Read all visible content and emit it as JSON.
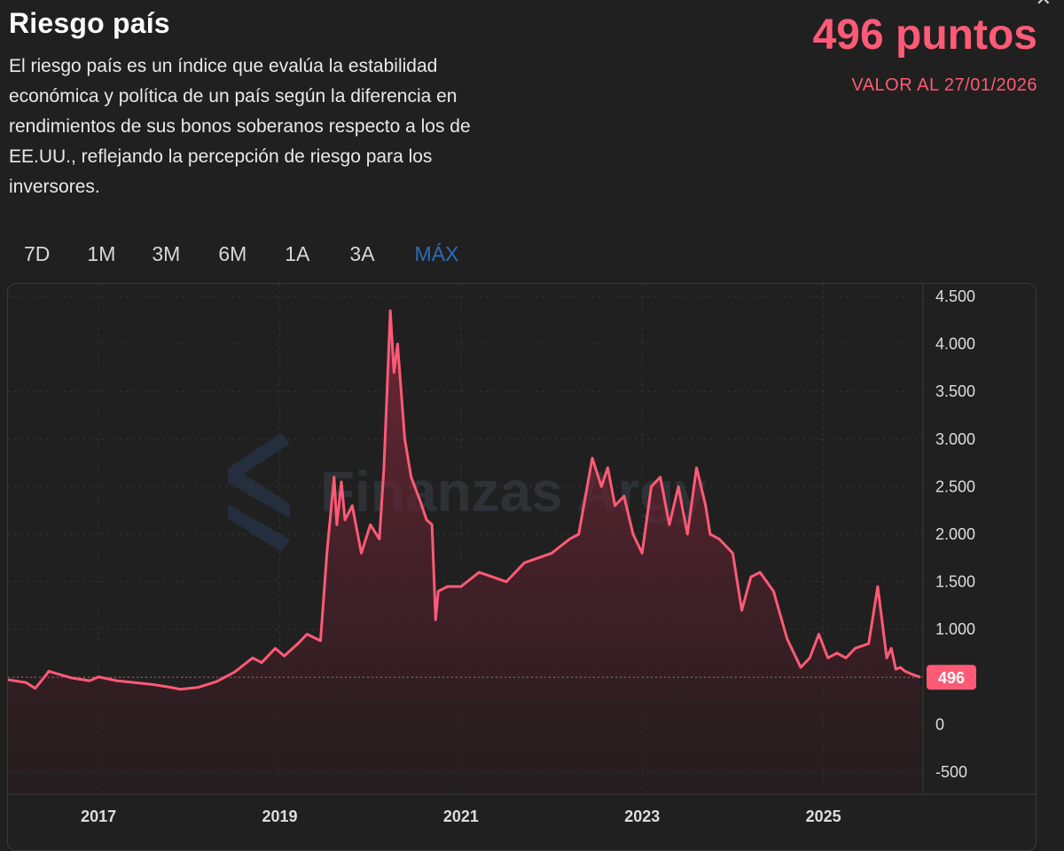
{
  "header": {
    "title": "Riesgo país",
    "description_lines": [
      "El riesgo país es un índice que evalúa la estabilidad",
      "económica y política de un país según la diferencia en",
      "rendimientos de sus bonos soberanos respecto a los de",
      "EE.UU., reflejando la percepción de riesgo para los",
      "inversores."
    ],
    "current_value": "496 puntos",
    "as_of": "VALOR AL 27/01/2026"
  },
  "range_tabs": [
    {
      "label": "7D",
      "active": false
    },
    {
      "label": "1M",
      "active": false
    },
    {
      "label": "3M",
      "active": false
    },
    {
      "label": "6M",
      "active": false
    },
    {
      "label": "1A",
      "active": false
    },
    {
      "label": "3A",
      "active": false
    },
    {
      "label": "MÁX",
      "active": true
    }
  ],
  "watermark": "Finanzas Argy",
  "colors": {
    "accent": "#ff5a76",
    "tab_active": "#2d6db8",
    "background": "#202020"
  },
  "chart_data": {
    "type": "area",
    "ylim": [
      -600,
      4600
    ],
    "y_ticks": [
      4500,
      4000,
      3500,
      3000,
      2500,
      2000,
      1500,
      1000,
      500,
      0,
      -500
    ],
    "y_tick_labels": [
      "4.500",
      "4.000",
      "3.500",
      "3.000",
      "2.500",
      "2.000",
      "1.500",
      "1.000",
      "",
      "0",
      "-500"
    ],
    "xlim": [
      2016.0,
      2026.1
    ],
    "x_ticks": [
      2017,
      2019,
      2021,
      2023,
      2025
    ],
    "x_tick_labels": [
      "2017",
      "2019",
      "2021",
      "2023",
      "2025"
    ],
    "current_label": "496",
    "current_value": 496,
    "grid": true,
    "series": [
      {
        "x": [
          2016.0,
          2016.2,
          2016.3,
          2016.42,
          2016.45,
          2016.7,
          2016.9,
          2017.0,
          2017.2,
          2017.4,
          2017.6,
          2017.8,
          2017.9,
          2018.1,
          2018.3,
          2018.5,
          2018.7,
          2018.8,
          2018.95,
          2019.05,
          2019.2,
          2019.3,
          2019.45,
          2019.52,
          2019.6,
          2019.63,
          2019.68,
          2019.72,
          2019.8,
          2019.9,
          2020.0,
          2020.1,
          2020.15,
          2020.22,
          2020.26,
          2020.3,
          2020.38,
          2020.45,
          2020.55,
          2020.62,
          2020.68,
          2020.72,
          2020.75,
          2020.85,
          2021.0,
          2021.2,
          2021.35,
          2021.5,
          2021.7,
          2021.85,
          2022.0,
          2022.2,
          2022.3,
          2022.45,
          2022.55,
          2022.62,
          2022.7,
          2022.8,
          2022.9,
          2023.0,
          2023.1,
          2023.2,
          2023.3,
          2023.4,
          2023.5,
          2023.6,
          2023.7,
          2023.75,
          2023.85,
          2024.0,
          2024.1,
          2024.2,
          2024.3,
          2024.45,
          2024.6,
          2024.75,
          2024.85,
          2024.95,
          2025.05,
          2025.15,
          2025.25,
          2025.35,
          2025.5,
          2025.6,
          2025.7,
          2025.75,
          2025.8,
          2025.85,
          2025.9,
          2026.0,
          2026.07
        ],
        "y": [
          470,
          440,
          380,
          520,
          560,
          490,
          460,
          500,
          460,
          440,
          420,
          390,
          370,
          390,
          450,
          550,
          700,
          650,
          800,
          720,
          850,
          950,
          880,
          1800,
          2600,
          2100,
          2550,
          2150,
          2300,
          1800,
          2100,
          1950,
          2700,
          4350,
          3700,
          4000,
          3000,
          2600,
          2350,
          2150,
          2100,
          1100,
          1400,
          1450,
          1450,
          1600,
          1550,
          1500,
          1700,
          1750,
          1800,
          1950,
          2000,
          2800,
          2500,
          2700,
          2300,
          2400,
          2000,
          1800,
          2500,
          2600,
          2100,
          2500,
          2000,
          2700,
          2300,
          2000,
          1950,
          1800,
          1200,
          1550,
          1600,
          1400,
          900,
          600,
          700,
          950,
          700,
          750,
          700,
          800,
          850,
          1450,
          700,
          800,
          580,
          600,
          560,
          520,
          496
        ]
      }
    ]
  }
}
